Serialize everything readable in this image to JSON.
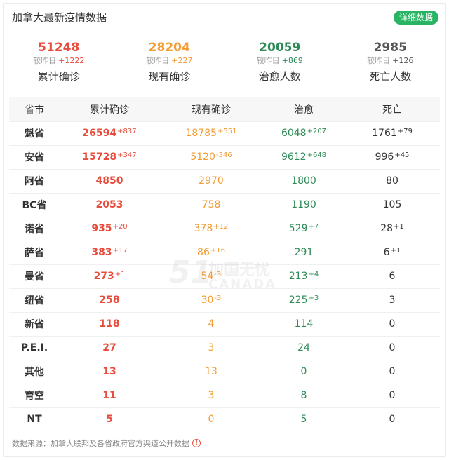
{
  "header": {
    "title": "加拿大最新疫情数据",
    "detail_button": "详细数据"
  },
  "summary": [
    {
      "value": "51248",
      "delta_label": "较昨日",
      "delta": "+1222",
      "label": "累计确诊",
      "color": "#e74c3c"
    },
    {
      "value": "28204",
      "delta_label": "较昨日",
      "delta": "+227",
      "label": "现有确诊",
      "color": "#f39c34"
    },
    {
      "value": "20059",
      "delta_label": "较昨日",
      "delta": "+869",
      "label": "治愈人数",
      "color": "#2e8b57"
    },
    {
      "value": "2985",
      "delta_label": "较昨日",
      "delta": "+126",
      "label": "死亡人数",
      "color": "#555555"
    }
  ],
  "table": {
    "headers": [
      "省市",
      "累计确诊",
      "现有确诊",
      "治愈",
      "死亡"
    ],
    "rows": [
      {
        "prov": "魁省",
        "conf": "26594",
        "conf_d": "+837",
        "cur": "18785",
        "cur_d": "+551",
        "heal": "6048",
        "heal_d": "+207",
        "dead": "1761",
        "dead_d": "+79"
      },
      {
        "prov": "安省",
        "conf": "15728",
        "conf_d": "+347",
        "cur": "5120",
        "cur_d": "-346",
        "heal": "9612",
        "heal_d": "+648",
        "dead": "996",
        "dead_d": "+45"
      },
      {
        "prov": "阿省",
        "conf": "4850",
        "conf_d": "",
        "cur": "2970",
        "cur_d": "",
        "heal": "1800",
        "heal_d": "",
        "dead": "80",
        "dead_d": ""
      },
      {
        "prov": "BC省",
        "conf": "2053",
        "conf_d": "",
        "cur": "758",
        "cur_d": "",
        "heal": "1190",
        "heal_d": "",
        "dead": "105",
        "dead_d": ""
      },
      {
        "prov": "诺省",
        "conf": "935",
        "conf_d": "+20",
        "cur": "378",
        "cur_d": "+12",
        "heal": "529",
        "heal_d": "+7",
        "dead": "28",
        "dead_d": "+1"
      },
      {
        "prov": "萨省",
        "conf": "383",
        "conf_d": "+17",
        "cur": "86",
        "cur_d": "+16",
        "heal": "291",
        "heal_d": "",
        "dead": "6",
        "dead_d": "+1"
      },
      {
        "prov": "曼省",
        "conf": "273",
        "conf_d": "+1",
        "cur": "54",
        "cur_d": "-3",
        "heal": "213",
        "heal_d": "+4",
        "dead": "6",
        "dead_d": ""
      },
      {
        "prov": "纽省",
        "conf": "258",
        "conf_d": "",
        "cur": "30",
        "cur_d": "-3",
        "heal": "225",
        "heal_d": "+3",
        "dead": "3",
        "dead_d": ""
      },
      {
        "prov": "新省",
        "conf": "118",
        "conf_d": "",
        "cur": "4",
        "cur_d": "",
        "heal": "114",
        "heal_d": "",
        "dead": "0",
        "dead_d": ""
      },
      {
        "prov": "P.E.I.",
        "conf": "27",
        "conf_d": "",
        "cur": "3",
        "cur_d": "",
        "heal": "24",
        "heal_d": "",
        "dead": "0",
        "dead_d": ""
      },
      {
        "prov": "其他",
        "conf": "13",
        "conf_d": "",
        "cur": "13",
        "cur_d": "",
        "heal": "0",
        "heal_d": "",
        "dead": "0",
        "dead_d": ""
      },
      {
        "prov": "育空",
        "conf": "11",
        "conf_d": "",
        "cur": "3",
        "cur_d": "",
        "heal": "8",
        "heal_d": "",
        "dead": "0",
        "dead_d": ""
      },
      {
        "prov": "NT",
        "conf": "5",
        "conf_d": "",
        "cur": "0",
        "cur_d": "",
        "heal": "5",
        "heal_d": "",
        "dead": "0",
        "dead_d": ""
      }
    ]
  },
  "watermark": {
    "big": "51",
    "cn": "加国无忧",
    "en": "CANADA"
  },
  "footer": {
    "source": "数据来源：加拿大联邦及各省政府官方渠道公开数据",
    "icon": "info-icon"
  }
}
